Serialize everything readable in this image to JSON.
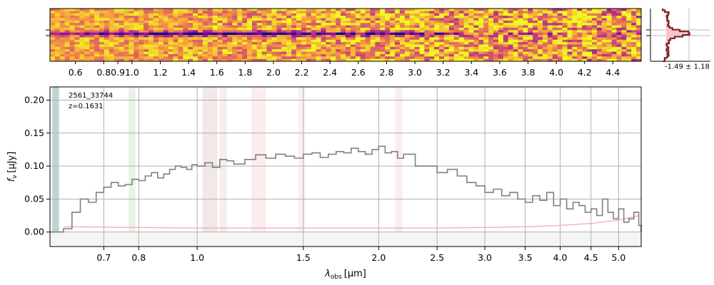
{
  "chart_data": [
    {
      "type": "heatmap",
      "name": "2d-spectrum",
      "x_ticks": [
        "0.6",
        "0.8",
        "0.9",
        "1.0",
        "1.2",
        "1.4",
        "1.6",
        "1.8",
        "2.0",
        "2.2",
        "2.4",
        "2.6",
        "2.8",
        "3.0",
        "3.2",
        "3.4",
        "3.6",
        "3.8",
        "4.0",
        "4.2",
        "4.4"
      ],
      "x_tick_values": [
        0.6,
        0.8,
        0.9,
        1.0,
        1.2,
        1.4,
        1.6,
        1.8,
        2.0,
        2.2,
        2.4,
        2.6,
        2.8,
        3.0,
        3.2,
        3.4,
        3.6,
        3.8,
        4.0,
        4.2,
        4.4
      ],
      "xlim": [
        0.42,
        4.6
      ],
      "colormap": "plasma",
      "trace_row_fraction": 0.5
    },
    {
      "type": "line",
      "name": "profile",
      "annotation": "-1.49 ± 1.18",
      "fill_color": "#f5c6cb",
      "line_color": "#7a1a1a"
    },
    {
      "type": "line",
      "name": "1d-spectrum",
      "annotation_id": "2561_33744",
      "annotation_z": "z=0.1631",
      "xlabel_main": "λ",
      "xlabel_sub": "obs",
      "xlabel_unit": "[μm]",
      "ylabel_main": "f",
      "ylabel_sub": "ν",
      "ylabel_unit": "[μJy]",
      "xlim": [
        0.57,
        5.45
      ],
      "ylim": [
        -0.022,
        0.22
      ],
      "x_ticks": [
        "0.7",
        "0.8",
        "1.0",
        "1.5",
        "2.0",
        "2.5",
        "3.0",
        "3.5",
        "4.0",
        "4.5",
        "5.0"
      ],
      "x_tick_values": [
        0.7,
        0.8,
        1.0,
        1.5,
        2.0,
        2.5,
        3.0,
        3.5,
        4.0,
        4.5,
        5.0
      ],
      "y_ticks": [
        "0.00",
        "0.05",
        "0.10",
        "0.15",
        "0.20"
      ],
      "y_tick_values": [
        0.0,
        0.05,
        0.1,
        0.15,
        0.2
      ],
      "grid": true,
      "series": [
        {
          "color": "#808080",
          "step": true,
          "x": [
            0.57,
            0.6,
            0.62,
            0.64,
            0.66,
            0.68,
            0.7,
            0.72,
            0.74,
            0.76,
            0.78,
            0.8,
            0.82,
            0.84,
            0.86,
            0.88,
            0.9,
            0.92,
            0.94,
            0.96,
            0.98,
            1.0,
            1.03,
            1.06,
            1.09,
            1.12,
            1.15,
            1.2,
            1.25,
            1.3,
            1.35,
            1.4,
            1.45,
            1.5,
            1.55,
            1.6,
            1.65,
            1.7,
            1.75,
            1.8,
            1.85,
            1.9,
            1.95,
            2.0,
            2.05,
            2.1,
            2.15,
            2.2,
            2.3,
            2.4,
            2.5,
            2.6,
            2.7,
            2.8,
            2.9,
            3.0,
            3.1,
            3.2,
            3.3,
            3.4,
            3.5,
            3.6,
            3.7,
            3.8,
            3.9,
            4.0,
            4.1,
            4.2,
            4.3,
            4.4,
            4.5,
            4.6,
            4.7,
            4.8,
            4.9,
            5.0,
            5.1,
            5.2,
            5.3,
            5.4,
            5.45
          ],
          "values": [
            0.0,
            0.005,
            0.03,
            0.05,
            0.045,
            0.06,
            0.068,
            0.075,
            0.07,
            0.072,
            0.08,
            0.078,
            0.085,
            0.09,
            0.082,
            0.088,
            0.095,
            0.1,
            0.098,
            0.095,
            0.102,
            0.1,
            0.105,
            0.098,
            0.11,
            0.108,
            0.103,
            0.11,
            0.117,
            0.112,
            0.118,
            0.115,
            0.112,
            0.118,
            0.12,
            0.113,
            0.118,
            0.122,
            0.12,
            0.127,
            0.122,
            0.118,
            0.125,
            0.13,
            0.12,
            0.122,
            0.112,
            0.118,
            0.1,
            0.1,
            0.09,
            0.095,
            0.085,
            0.075,
            0.07,
            0.06,
            0.065,
            0.055,
            0.06,
            0.05,
            0.045,
            0.055,
            0.048,
            0.06,
            0.04,
            0.05,
            0.035,
            0.045,
            0.04,
            0.03,
            0.035,
            0.025,
            0.05,
            0.03,
            0.02,
            0.035,
            0.015,
            0.02,
            0.03,
            0.01,
            0.0
          ]
        },
        {
          "color": "#f5b5bb",
          "step": false,
          "x": [
            0.6,
            1.0,
            1.5,
            2.0,
            2.5,
            3.0,
            3.5,
            4.0,
            4.5,
            5.0,
            5.4
          ],
          "values": [
            0.008,
            0.006,
            0.006,
            0.006,
            0.006,
            0.007,
            0.008,
            0.01,
            0.013,
            0.018,
            0.025
          ]
        }
      ],
      "bands": [
        {
          "x0": 0.575,
          "x1": 0.59,
          "color": "#1f5f5f",
          "alpha": 0.28
        },
        {
          "x0": 0.77,
          "x1": 0.79,
          "color": "#2e9a2e",
          "alpha": 0.12
        },
        {
          "x0": 1.02,
          "x1": 1.08,
          "color": "#8b1a1a",
          "alpha": 0.1
        },
        {
          "x0": 1.09,
          "x1": 1.12,
          "color": "#8b1a1a",
          "alpha": 0.08
        },
        {
          "x0": 1.23,
          "x1": 1.3,
          "color": "#e26a6a",
          "alpha": 0.12
        },
        {
          "x0": 1.47,
          "x1": 1.51,
          "color": "#e26a6a",
          "alpha": 0.1
        },
        {
          "x0": 2.13,
          "x1": 2.19,
          "color": "#e26a6a",
          "alpha": 0.12
        }
      ]
    }
  ]
}
